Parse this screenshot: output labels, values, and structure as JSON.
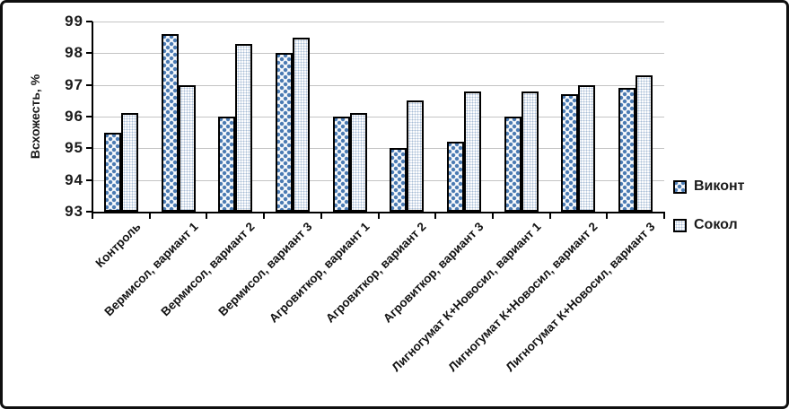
{
  "chart_data": {
    "type": "bar",
    "title": "",
    "xlabel": "",
    "ylabel": "Всхожесть, %",
    "ylim": [
      93,
      99
    ],
    "yticks": [
      93,
      94,
      95,
      96,
      97,
      98,
      99
    ],
    "grid": true,
    "legend_position": "right",
    "categories": [
      "Контроль",
      "Вермисол, вариант 1",
      "Вермисол, вариант 2",
      "Вермисол, вариант 3",
      "Агровиткор, вариант 1",
      "Агровиткор, вариант 2",
      "Агровиткор, вариант 3",
      "Лигногумат К+Новосил, вариант 1",
      "Лигногумат К+Новосил, вариант 2",
      "Лигногумат К+Новосил, вариант 3"
    ],
    "series": [
      {
        "name": "Виконт",
        "pattern": "blue-dotted-diamond",
        "color": "#4a7ab2",
        "values": [
          95.5,
          98.6,
          96.0,
          98.0,
          96.0,
          95.0,
          95.2,
          96.0,
          96.7,
          96.9
        ]
      },
      {
        "name": "Сокол",
        "pattern": "light-dotted",
        "color": "#a8bdd6",
        "values": [
          96.1,
          97.0,
          98.3,
          98.5,
          96.1,
          96.5,
          96.8,
          96.8,
          97.0,
          97.3
        ]
      }
    ]
  }
}
